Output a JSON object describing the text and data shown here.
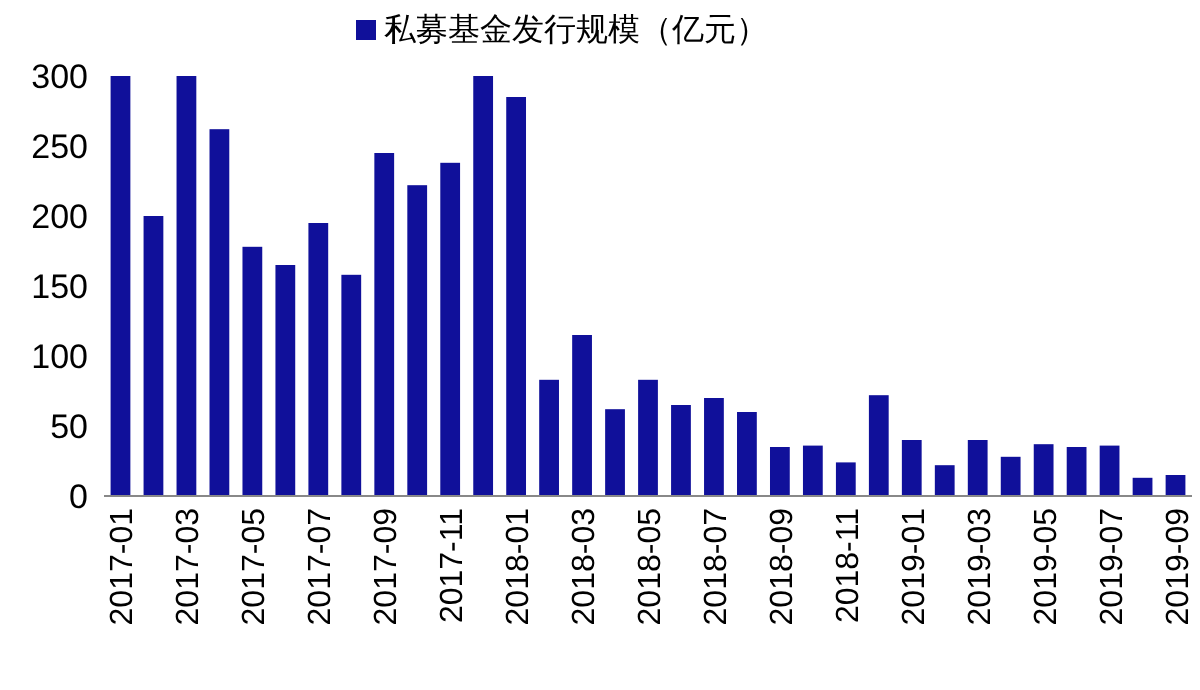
{
  "chart_data": {
    "type": "bar",
    "categories": [
      "2017-01",
      null,
      "2017-03",
      null,
      "2017-05",
      null,
      "2017-07",
      null,
      "2017-09",
      null,
      "2017-11",
      null,
      "2018-01",
      null,
      "2018-03",
      null,
      "2018-05",
      null,
      "2018-07",
      null,
      "2018-09",
      null,
      "2018-11",
      null,
      "2019-01",
      null,
      "2019-03",
      null,
      "2019-05",
      null,
      "2019-07",
      null,
      "2019-09"
    ],
    "series": [
      {
        "name": "私募基金发行规模（亿元）",
        "color": "#10109a",
        "values": [
          300,
          200,
          300,
          262,
          178,
          165,
          195,
          158,
          245,
          222,
          238,
          300,
          285,
          83,
          115,
          62,
          83,
          65,
          70,
          60,
          35,
          36,
          24,
          72,
          40,
          22,
          40,
          28,
          37,
          35,
          36,
          13,
          15
        ]
      }
    ],
    "ylim": [
      0,
      300
    ],
    "yticks": [
      0,
      50,
      100,
      150,
      200,
      250,
      300
    ],
    "legend": "top",
    "grid": false
  }
}
